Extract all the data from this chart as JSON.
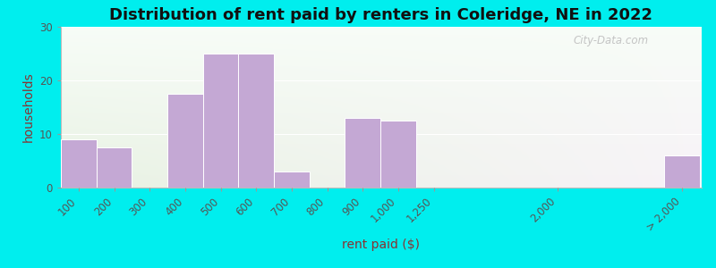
{
  "title": "Distribution of rent paid by renters in Coleridge, NE in 2022",
  "xlabel": "rent paid ($)",
  "ylabel": "households",
  "bar_color": "#C4A8D4",
  "bar_edge_color": "#ffffff",
  "background_outer": "#00EEEE",
  "ylim": [
    0,
    30
  ],
  "yticks": [
    0,
    10,
    20,
    30
  ],
  "categories": [
    "100",
    "200",
    "300",
    "400",
    "500",
    "600",
    "700",
    "800",
    "900",
    "1,000",
    "1,250",
    "2,000",
    "> 2,000"
  ],
  "values": [
    9,
    7.5,
    0,
    17.5,
    25,
    25,
    3,
    0,
    13,
    12.5,
    0,
    0,
    6
  ],
  "title_fontsize": 13,
  "axis_label_fontsize": 10,
  "tick_fontsize": 8.5,
  "watermark": "City-Data.com"
}
